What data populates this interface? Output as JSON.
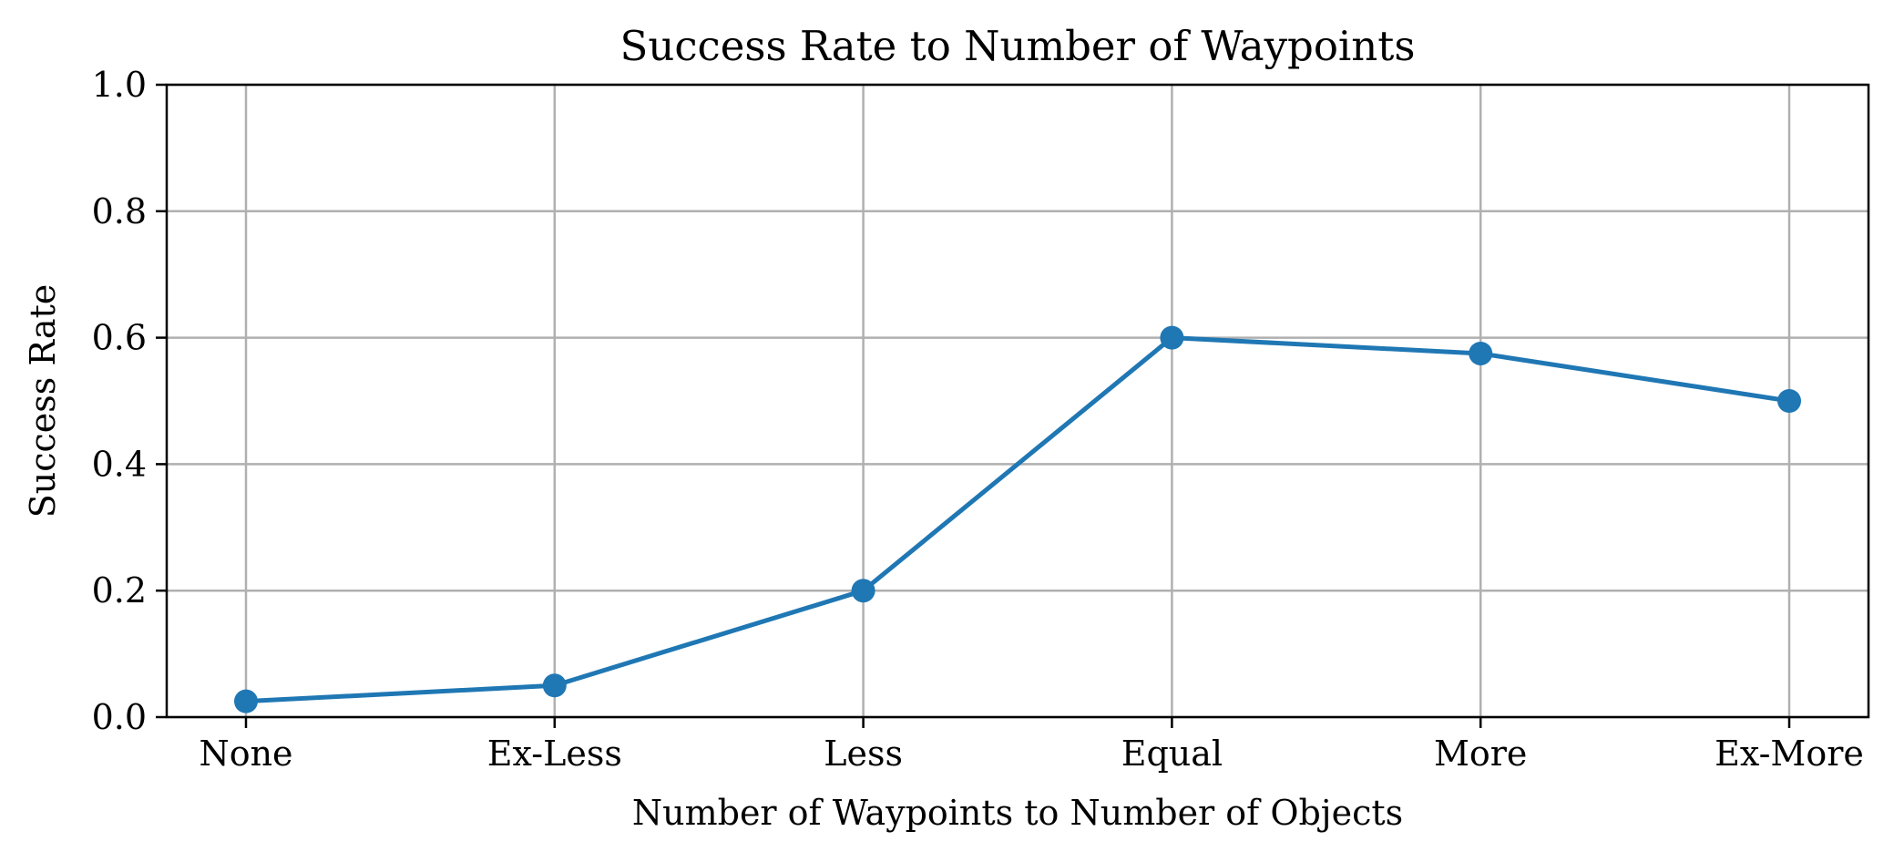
{
  "chart_data": {
    "type": "line",
    "title": "Success Rate to Number of Waypoints",
    "xlabel": "Number of Waypoints to Number of Objects",
    "ylabel": "Success Rate",
    "categories": [
      "None",
      "Ex-Less",
      "Less",
      "Equal",
      "More",
      "Ex-More"
    ],
    "series": [
      {
        "values": [
          0.025,
          0.05,
          0.2,
          0.6,
          0.575,
          0.5
        ],
        "color": "#1f77b4",
        "marker": "circle"
      }
    ],
    "ylim": [
      0.0,
      1.0
    ],
    "yticks": [
      "0.0",
      "0.2",
      "0.4",
      "0.6",
      "0.8",
      "1.0"
    ],
    "grid": true
  }
}
